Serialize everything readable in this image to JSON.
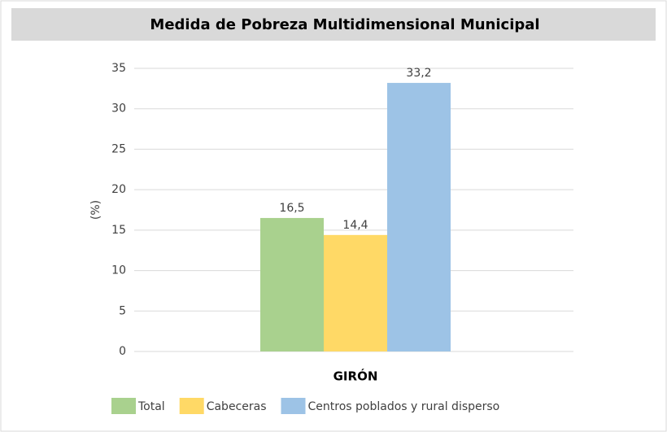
{
  "chart_data": {
    "type": "bar",
    "title": "Medida de Pobreza Multidimensional Municipal",
    "y_label": "(%)",
    "categories": [
      "GIRÓN"
    ],
    "series": [
      {
        "name": "Total",
        "color": "#a9d18e",
        "values": [
          16.5
        ],
        "value_labels": [
          "16,5"
        ]
      },
      {
        "name": "Cabeceras",
        "color": "#ffd966",
        "values": [
          14.4
        ],
        "value_labels": [
          "14,4"
        ]
      },
      {
        "name": "Centros poblados y rural disperso",
        "color": "#9dc3e6",
        "values": [
          33.2
        ],
        "value_labels": [
          "33,2"
        ]
      }
    ],
    "ylim": [
      0,
      35
    ],
    "yticks": [
      0,
      5,
      10,
      15,
      20,
      25,
      30,
      35
    ],
    "grid": true,
    "legend": "bottom"
  }
}
